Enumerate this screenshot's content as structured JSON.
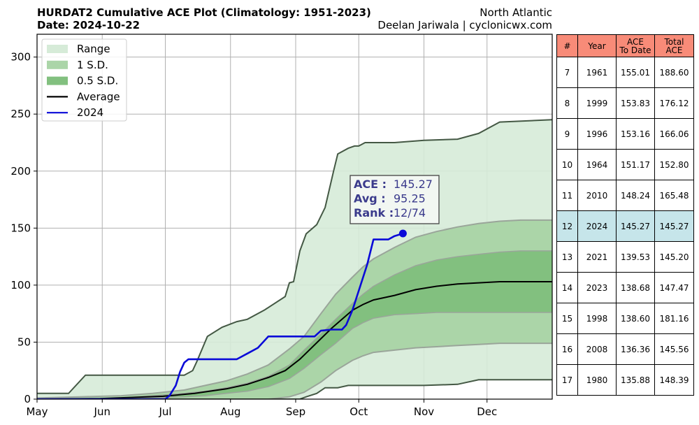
{
  "header": {
    "title": "HURDAT2 Cumulative ACE Plot (Climatology: 1951-2023)",
    "date": "Date: 2024-10-22",
    "basin": "North Atlantic",
    "credit": "Deelan Jariwala | cyclonicwx.com"
  },
  "colors": {
    "range": "#d6ebd8",
    "sd1": "#abd5a8",
    "sd05": "#82c07f",
    "range_edge": "#445844",
    "sd_edge": "#9aa59a",
    "average": "#000000",
    "current": "#0a0ad8",
    "table_header": "#f88b78",
    "table_highlight": "#c6e5ea"
  },
  "chart_data": {
    "type": "area",
    "title": "HURDAT2 Cumulative ACE Plot (Climatology: 1951-2023)",
    "xlabel": "",
    "ylabel": "",
    "x_unit": "day of season (May 1 = 0)",
    "xlim": [
      0,
      245
    ],
    "ylim": [
      0,
      320
    ],
    "month_ticks": [
      {
        "label": "May",
        "x": 0
      },
      {
        "label": "Jun",
        "x": 31
      },
      {
        "label": "Jul",
        "x": 61
      },
      {
        "label": "Aug",
        "x": 92
      },
      {
        "label": "Sep",
        "x": 123
      },
      {
        "label": "Oct",
        "x": 153
      },
      {
        "label": "Nov",
        "x": 184
      },
      {
        "label": "Dec",
        "x": 214
      }
    ],
    "y_ticks": [
      0,
      50,
      100,
      150,
      200,
      250,
      300
    ],
    "grid": true,
    "legend": {
      "placement": "top-left",
      "entries": [
        "Range",
        "1 S.D.",
        "0.5 S.D.",
        "Average",
        "2024"
      ]
    },
    "series": [
      {
        "name": "Range",
        "kind": "band",
        "x": [
          0,
          15,
          23,
          40,
          70,
          74,
          76,
          81,
          88,
          95,
          100,
          108,
          118,
          120,
          122,
          125,
          128,
          133,
          137,
          141,
          143,
          148,
          151,
          153,
          156,
          170,
          184,
          200,
          210,
          220,
          245
        ],
        "lower": [
          0,
          0,
          0,
          0,
          0,
          0,
          0,
          0,
          0,
          0,
          0,
          0,
          0,
          0,
          0,
          0,
          2,
          5,
          10,
          10,
          10,
          12,
          12,
          12,
          12,
          12,
          12,
          13,
          17,
          17,
          17
        ],
        "upper": [
          5,
          5,
          21,
          21,
          21,
          25,
          33,
          55,
          63,
          68,
          70,
          78,
          90,
          102,
          103,
          130,
          145,
          153,
          168,
          200,
          215,
          220,
          222,
          222,
          225,
          225,
          227,
          228,
          233,
          243,
          245
        ]
      },
      {
        "name": "1 S.D.",
        "kind": "band",
        "x": [
          0,
          20,
          40,
          55,
          70,
          80,
          90,
          100,
          110,
          120,
          127,
          135,
          142,
          150,
          155,
          160,
          170,
          180,
          190,
          200,
          210,
          220,
          230,
          245
        ],
        "lower": [
          0,
          0,
          0,
          0,
          0,
          0,
          0,
          0,
          0,
          2,
          6,
          15,
          25,
          34,
          38,
          41,
          43,
          45,
          46,
          47,
          48,
          49,
          49,
          49
        ],
        "upper": [
          1,
          2,
          3,
          5,
          8,
          12,
          16,
          22,
          30,
          44,
          55,
          75,
          92,
          107,
          116,
          123,
          133,
          142,
          147,
          151,
          154,
          156,
          157,
          157
        ]
      },
      {
        "name": "0.5 S.D.",
        "kind": "band",
        "x": [
          0,
          20,
          40,
          55,
          70,
          80,
          90,
          100,
          110,
          120,
          127,
          135,
          142,
          150,
          155,
          160,
          170,
          180,
          190,
          200,
          210,
          220,
          230,
          245
        ],
        "lower": [
          0,
          0,
          0,
          1,
          2,
          3,
          5,
          7,
          11,
          18,
          27,
          39,
          49,
          62,
          67,
          71,
          74,
          75,
          76,
          76,
          76,
          76,
          76,
          76
        ],
        "upper": [
          0,
          0,
          1,
          3,
          5,
          7,
          10,
          14,
          20,
          30,
          43,
          57,
          70,
          84,
          92,
          99,
          109,
          117,
          122,
          125,
          127,
          129,
          130,
          130
        ]
      },
      {
        "name": "Average",
        "kind": "line",
        "x": [
          0,
          30,
          60,
          75,
          90,
          100,
          110,
          118,
          125,
          130,
          135,
          140,
          145,
          150,
          155,
          160,
          170,
          180,
          190,
          200,
          210,
          220,
          230,
          245
        ],
        "y": [
          0,
          0.5,
          2.5,
          5,
          9,
          13,
          19,
          25,
          35,
          44,
          53,
          62,
          70,
          78,
          83,
          87,
          91,
          96,
          99,
          101,
          102,
          103,
          103,
          103
        ]
      },
      {
        "name": "2024",
        "kind": "line",
        "x": [
          0,
          61,
          63,
          66,
          68,
          70,
          72,
          85,
          90,
          95,
          100,
          105,
          110,
          120,
          125,
          132,
          135,
          140,
          145,
          147,
          150,
          153,
          157,
          160,
          167,
          170,
          174
        ],
        "y": [
          0,
          0,
          3,
          12,
          24,
          32,
          35,
          35,
          35,
          35,
          40,
          45,
          55,
          55,
          55,
          55,
          60,
          61,
          61,
          65,
          78,
          95,
          118,
          140,
          140,
          143,
          145.27
        ]
      }
    ],
    "annotation": {
      "label_ace": "ACE :",
      "value_ace": "145.27",
      "label_avg": "Avg :",
      "value_avg": "95.25",
      "label_rank": "Rank :",
      "value_rank": "12/74"
    }
  },
  "table": {
    "columns": [
      "#",
      "Year",
      "ACE\nTo Date",
      "Total\nACE"
    ],
    "rows": [
      [
        "7",
        "1961",
        "155.01",
        "188.60"
      ],
      [
        "8",
        "1999",
        "153.83",
        "176.12"
      ],
      [
        "9",
        "1996",
        "153.16",
        "166.06"
      ],
      [
        "10",
        "1964",
        "151.17",
        "152.80"
      ],
      [
        "11",
        "2010",
        "148.24",
        "165.48"
      ],
      [
        "12",
        "2024",
        "145.27",
        "145.27"
      ],
      [
        "13",
        "2021",
        "139.53",
        "145.20"
      ],
      [
        "14",
        "2023",
        "138.68",
        "147.47"
      ],
      [
        "15",
        "1998",
        "138.60",
        "181.16"
      ],
      [
        "16",
        "2008",
        "136.36",
        "145.56"
      ],
      [
        "17",
        "1980",
        "135.88",
        "148.39"
      ]
    ],
    "highlight_index": 5
  }
}
